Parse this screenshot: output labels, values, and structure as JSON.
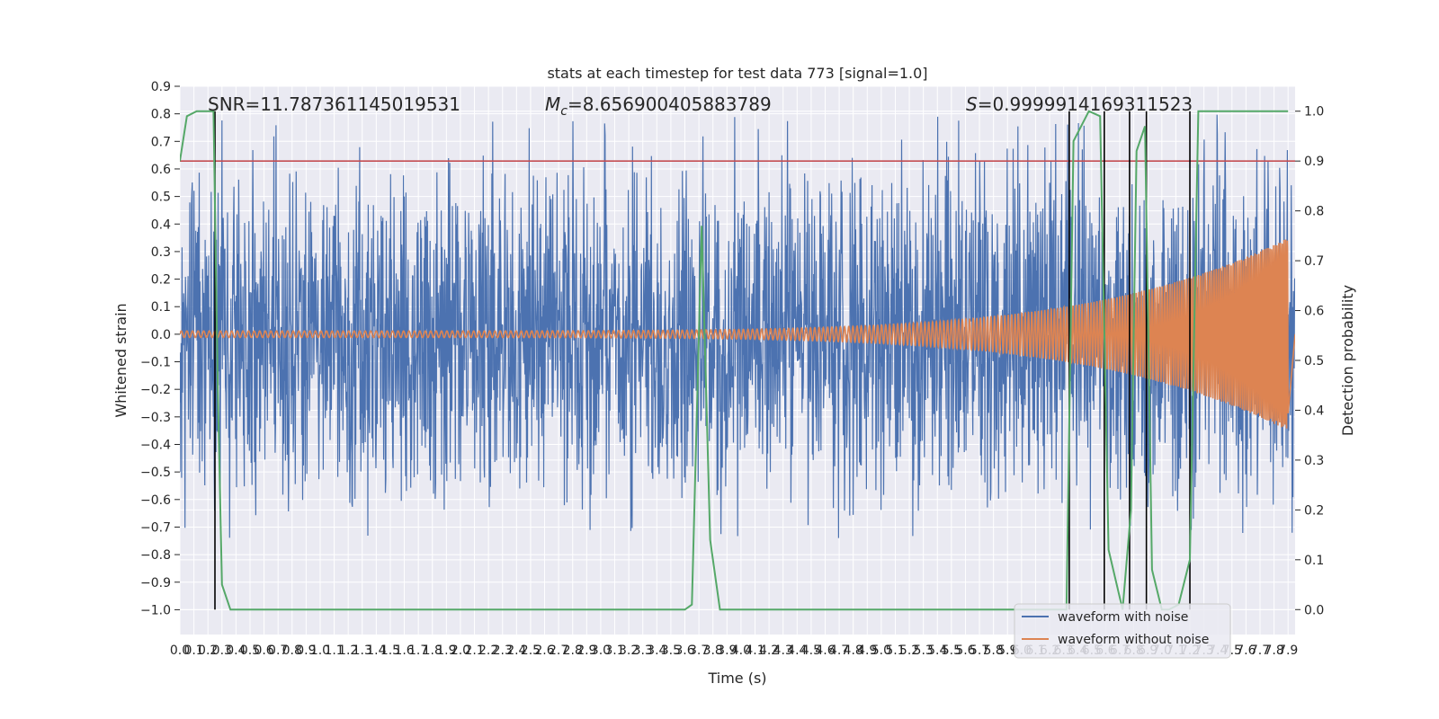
{
  "chart_data": {
    "type": "line",
    "title": "stats at each timestep for test data 773 [signal=1.0]",
    "xlabel": "Time (s)",
    "ylabel": "Whitened strain",
    "y2label": "Detection probability",
    "xlim": [
      0.0,
      7.95
    ],
    "ylim": [
      -1.09,
      0.9
    ],
    "y2lim": [
      -0.05,
      1.05
    ],
    "grid": true,
    "legend_position": "lower right",
    "x_tick_labels": [
      "0.0",
      "0.1",
      "0.2",
      "0.3",
      "0.4",
      "0.5",
      "0.6",
      "0.7",
      "0.8",
      "0.9",
      "1.0",
      "1.1",
      "1.2",
      "1.3",
      "1.4",
      "1.5",
      "1.6",
      "1.7",
      "1.8",
      "1.9",
      "2.0",
      "2.1",
      "2.2",
      "2.3",
      "2.4",
      "2.5",
      "2.6",
      "2.7",
      "2.8",
      "2.9",
      "3.0",
      "3.1",
      "3.2",
      "3.3",
      "3.4",
      "3.5",
      "3.6",
      "3.7",
      "3.8",
      "3.9",
      "4.0",
      "4.1",
      "4.2",
      "4.3",
      "4.4",
      "4.5",
      "4.6",
      "4.7",
      "4.8",
      "4.9",
      "5.0",
      "5.1",
      "5.2",
      "5.3",
      "5.4",
      "5.5",
      "5.6",
      "5.7",
      "5.8",
      "5.9",
      "6.0",
      "6.1",
      "6.2",
      "6.3",
      "6.4",
      "6.5",
      "6.6",
      "6.7",
      "6.8",
      "6.9",
      "7.0",
      "7.1",
      "7.2",
      "7.3",
      "7.4",
      "7.5",
      "7.6",
      "7.7",
      "7.8",
      "7.9"
    ],
    "y_tick_labels": [
      "−1.0",
      "−0.9",
      "−0.8",
      "−0.7",
      "−0.6",
      "−0.5",
      "−0.4",
      "−0.3",
      "−0.2",
      "−0.1",
      "0.0",
      "0.1",
      "0.2",
      "0.3",
      "0.4",
      "0.5",
      "0.6",
      "0.7",
      "0.8",
      "0.9"
    ],
    "y2_tick_labels": [
      "0.0",
      "0.1",
      "0.2",
      "0.3",
      "0.4",
      "0.5",
      "0.6",
      "0.7",
      "0.8",
      "0.9",
      "1.0"
    ],
    "annotations": {
      "snr": "SNR=11.787361145019531",
      "mc_symbol": "M",
      "mc_sub": "c",
      "mc_value": "=8.656900405883789",
      "s_symbol": "S",
      "s_value": "=0.9999914169311523"
    },
    "series": [
      {
        "name": "waveform with noise",
        "color": "#4c72b0",
        "envelope_quantiles": [
          -0.4,
          0.4
        ],
        "peak_max": 0.8,
        "peak_min": -0.74
      },
      {
        "name": "waveform without noise",
        "color": "#dd8452",
        "chirp_start_amplitude": 0.012,
        "chirp_end_amplitude": 0.35,
        "chirp_start_period": 0.04,
        "chirp_end_period": 0.012,
        "merger_time": 7.9
      },
      {
        "name": "detection probability",
        "color": "#55a868",
        "axis": "right",
        "points": [
          [
            0.0,
            0.9
          ],
          [
            0.05,
            0.99
          ],
          [
            0.12,
            1.0
          ],
          [
            0.24,
            1.0
          ],
          [
            0.27,
            0.45
          ],
          [
            0.3,
            0.05
          ],
          [
            0.36,
            0.0
          ],
          [
            3.6,
            0.0
          ],
          [
            3.65,
            0.01
          ],
          [
            3.72,
            0.77
          ],
          [
            3.78,
            0.14
          ],
          [
            3.85,
            0.0
          ],
          [
            6.32,
            0.0
          ],
          [
            6.37,
            0.94
          ],
          [
            6.48,
            1.0
          ],
          [
            6.56,
            0.99
          ],
          [
            6.62,
            0.12
          ],
          [
            6.72,
            0.0
          ],
          [
            6.78,
            0.2
          ],
          [
            6.82,
            0.92
          ],
          [
            6.88,
            0.97
          ],
          [
            6.93,
            0.08
          ],
          [
            7.0,
            0.0
          ],
          [
            7.05,
            0.0
          ],
          [
            7.12,
            0.01
          ],
          [
            7.2,
            0.1
          ],
          [
            7.26,
            1.0
          ],
          [
            7.9,
            1.0
          ]
        ]
      }
    ],
    "threshold": {
      "value": 0.9,
      "axis": "right",
      "color": "#c44e52"
    },
    "event_lines_x": [
      0.25,
      6.34,
      6.59,
      6.77,
      6.89,
      7.2
    ]
  }
}
